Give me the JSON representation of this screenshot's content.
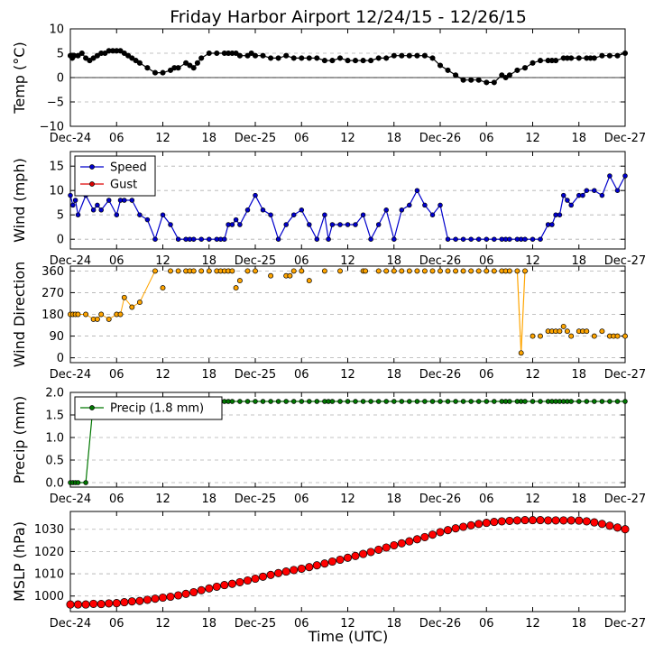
{
  "title": "Friday Harbor Airport 12/24/15 - 12/26/15",
  "xlabel": "Time (UTC)",
  "x_ticks": [
    "Dec-24",
    "06",
    "12",
    "18",
    "Dec-25",
    "06",
    "12",
    "18",
    "Dec-26",
    "06",
    "12",
    "18",
    "Dec-27"
  ],
  "chart_data": [
    {
      "type": "line",
      "ylabel": "Temp (°C)",
      "ylim": [
        -10,
        10
      ],
      "yticks": [
        "10",
        "5",
        "0",
        "−5",
        "−10"
      ],
      "ytick_values": [
        10,
        5,
        0,
        -5,
        -10
      ],
      "grid": true,
      "zero_line": true,
      "series": [
        {
          "color": "#000000",
          "x": [
            0.0,
            0.25,
            0.5,
            1.0,
            1.5,
            2.0,
            2.5,
            3.0,
            3.5,
            4.0,
            4.5,
            5.0,
            5.5,
            6.0,
            6.5,
            7.0,
            7.5,
            8.0,
            8.5,
            9.0,
            10.0,
            11.0,
            12.0,
            13.0,
            13.5,
            14.0,
            15.0,
            15.5,
            16.0,
            16.5,
            17.0,
            18.0,
            19.0,
            20.0,
            20.5,
            21.0,
            21.5,
            22.0,
            23.0,
            23.5,
            24.0,
            25.0,
            26.0,
            27.0,
            28.0,
            29.0,
            30.0,
            31.0,
            32.0,
            33.0,
            34.0,
            35.0,
            36.0,
            37.0,
            38.0,
            39.0,
            40.0,
            41.0,
            42.0,
            43.0,
            44.0,
            45.0,
            46.0,
            47.0,
            48.0,
            49.0,
            50.0,
            51.0,
            52.0,
            53.0,
            54.0,
            55.0,
            56.0,
            56.5,
            57.0,
            58.0,
            59.0,
            60.0,
            61.0,
            62.0,
            62.5,
            63.0,
            64.0,
            64.5,
            65.0,
            66.0,
            67.0,
            67.5,
            68.0,
            69.0,
            70.0,
            71.0,
            72.0
          ],
          "y": [
            4.5,
            4.0,
            4.5,
            4.5,
            5.0,
            4.0,
            3.5,
            4.0,
            4.5,
            5.0,
            5.0,
            5.5,
            5.5,
            5.5,
            5.5,
            5.0,
            4.5,
            4.0,
            3.5,
            3.0,
            2.0,
            1.0,
            1.0,
            1.5,
            2.0,
            2.0,
            3.0,
            2.5,
            2.0,
            3.0,
            4.0,
            5.0,
            5.0,
            5.0,
            5.0,
            5.0,
            5.0,
            4.5,
            4.5,
            5.0,
            4.5,
            4.5,
            4.0,
            4.0,
            4.5,
            4.0,
            4.0,
            4.0,
            4.0,
            3.5,
            3.5,
            4.0,
            3.5,
            3.5,
            3.5,
            3.5,
            4.0,
            4.0,
            4.5,
            4.5,
            4.5,
            4.5,
            4.5,
            4.0,
            2.5,
            1.5,
            0.5,
            -0.5,
            -0.5,
            -0.5,
            -1.0,
            -1.0,
            0.5,
            0.0,
            0.5,
            1.5,
            2.0,
            3.0,
            3.5,
            3.5,
            3.5,
            3.5,
            4.0,
            4.0,
            4.0,
            4.0,
            4.0,
            4.0,
            4.0,
            4.5,
            4.5,
            4.5,
            5.0
          ]
        }
      ]
    },
    {
      "type": "line",
      "ylabel": "Wind (mph)",
      "ylim": [
        -2,
        18
      ],
      "yticks": [
        "15",
        "10",
        "5",
        "0"
      ],
      "ytick_values": [
        15,
        10,
        5,
        0
      ],
      "grid": true,
      "legend_position": "top-left",
      "series": [
        {
          "name": "Speed",
          "color": "#0000cc",
          "x": [
            0.0,
            0.33,
            0.66,
            1.0,
            2.0,
            3.0,
            3.5,
            4.0,
            5.0,
            6.0,
            6.5,
            7.0,
            8.0,
            9.0,
            10.0,
            11.0,
            12.0,
            13.0,
            14.0,
            15.0,
            15.5,
            16.0,
            17.0,
            18.0,
            19.0,
            19.5,
            20.0,
            20.5,
            21.0,
            21.5,
            22.0,
            23.0,
            24.0,
            25.0,
            26.0,
            27.0,
            28.0,
            29.0,
            30.0,
            31.0,
            32.0,
            33.0,
            33.5,
            34.0,
            35.0,
            36.0,
            37.0,
            38.0,
            39.0,
            40.0,
            41.0,
            42.0,
            43.0,
            44.0,
            45.0,
            46.0,
            47.0,
            48.0,
            49.0,
            50.0,
            51.0,
            52.0,
            53.0,
            54.0,
            55.0,
            56.0,
            56.5,
            57.0,
            58.0,
            58.5,
            59.0,
            60.0,
            61.0,
            62.0,
            62.5,
            63.0,
            63.5,
            64.0,
            64.5,
            65.0,
            66.0,
            66.5,
            67.0,
            68.0,
            69.0,
            70.0,
            71.0,
            72.0
          ],
          "y": [
            9,
            7,
            8,
            5,
            9,
            6,
            7,
            6,
            8,
            5,
            8,
            8,
            8,
            5,
            4,
            0,
            5,
            3,
            0,
            0,
            0,
            0,
            0,
            0,
            0,
            0,
            0,
            3,
            3,
            4,
            3,
            6,
            9,
            6,
            5,
            0,
            3,
            5,
            6,
            3,
            0,
            5,
            0,
            3,
            3,
            3,
            3,
            5,
            0,
            3,
            6,
            0,
            6,
            7,
            10,
            7,
            5,
            7,
            0,
            0,
            0,
            0,
            0,
            0,
            0,
            0,
            0,
            0,
            0,
            0,
            0,
            0,
            0,
            3,
            3,
            5,
            5,
            9,
            8,
            7,
            9,
            9,
            10,
            10,
            9,
            13,
            10,
            13
          ]
        },
        {
          "name": "Gust",
          "color": "#dd0000",
          "x": [],
          "y": []
        }
      ]
    },
    {
      "type": "scatter",
      "ylabel": "Wind Direction",
      "ylim": [
        -20,
        380
      ],
      "yticks": [
        "360",
        "270",
        "180",
        "90",
        "0"
      ],
      "ytick_values": [
        360,
        270,
        180,
        90,
        0
      ],
      "grid": true,
      "series": [
        {
          "color": "#ffa500",
          "x": [
            0.0,
            0.33,
            0.66,
            1.0,
            2.0,
            3.0,
            3.5,
            4.0,
            5.0,
            6.0,
            6.5,
            7.0,
            8.0,
            9.0,
            11.0,
            12.0,
            13.0,
            14.0,
            15.0,
            15.5,
            16.0,
            17.0,
            18.0,
            19.0,
            19.5,
            20.0,
            20.5,
            21.0,
            21.5,
            22.0,
            23.0,
            24.0,
            26.0,
            28.0,
            28.5,
            29.0,
            30.0,
            31.0,
            33.0,
            35.0,
            38.0,
            38.3,
            40.0,
            41.0,
            42.0,
            43.0,
            44.0,
            45.0,
            46.0,
            47.0,
            48.0,
            49.0,
            50.0,
            51.0,
            52.0,
            53.0,
            54.0,
            55.0,
            56.0,
            56.5,
            57.0,
            58.0,
            58.5,
            59.0,
            60.0,
            61.0,
            62.0,
            62.5,
            63.0,
            63.5,
            64.0,
            64.5,
            65.0,
            66.0,
            66.5,
            67.0,
            68.0,
            69.0,
            70.0,
            70.5,
            71.0,
            72.0
          ],
          "y": [
            180,
            180,
            180,
            180,
            180,
            160,
            160,
            180,
            160,
            180,
            180,
            250,
            210,
            230,
            360,
            290,
            360,
            360,
            360,
            360,
            360,
            360,
            360,
            360,
            360,
            360,
            360,
            360,
            290,
            320,
            360,
            360,
            340,
            340,
            340,
            360,
            360,
            320,
            360,
            360,
            360,
            360,
            360,
            360,
            360,
            360,
            360,
            360,
            360,
            360,
            360,
            360,
            360,
            360,
            360,
            360,
            360,
            360,
            360,
            360,
            360,
            360,
            20,
            360,
            90,
            90,
            110,
            110,
            110,
            110,
            130,
            110,
            90,
            110,
            110,
            110,
            90,
            110,
            90,
            90,
            90,
            90
          ]
        }
      ]
    },
    {
      "type": "line",
      "ylabel": "Precip (mm)",
      "ylim": [
        -0.1,
        2.0
      ],
      "yticks": [
        "2.0",
        "1.5",
        "1.0",
        "0.5",
        "0.0"
      ],
      "ytick_values": [
        2.0,
        1.5,
        1.0,
        0.5,
        0.0
      ],
      "grid": true,
      "legend_position": "top-left",
      "series": [
        {
          "name": "Precip (1.8 mm)",
          "color": "#007700",
          "x": [
            0.0,
            0.33,
            0.66,
            1.0,
            2.0,
            3.0,
            4.0,
            5.0,
            6.0,
            7.0,
            8.0,
            9.0,
            10.0,
            11.0,
            12.0,
            13.0,
            14.0,
            15.0,
            15.5,
            16.0,
            17.0,
            18.0,
            19.0,
            19.5,
            20.0,
            20.5,
            21.0,
            22.0,
            23.0,
            24.0,
            25.0,
            26.0,
            27.0,
            28.0,
            29.0,
            30.0,
            31.0,
            32.0,
            33.0,
            33.5,
            34.0,
            35.0,
            36.0,
            37.0,
            38.0,
            39.0,
            40.0,
            41.0,
            42.0,
            43.0,
            44.0,
            45.0,
            46.0,
            47.0,
            48.0,
            49.0,
            50.0,
            51.0,
            52.0,
            53.0,
            54.0,
            55.0,
            56.0,
            56.5,
            57.0,
            58.0,
            58.5,
            59.0,
            60.0,
            61.0,
            62.0,
            62.5,
            63.0,
            63.5,
            64.0,
            64.5,
            65.0,
            66.0,
            67.0,
            68.0,
            69.0,
            70.0,
            71.0,
            72.0
          ],
          "y": [
            0.0,
            0.0,
            0.0,
            0.0,
            0.0,
            1.8,
            1.8,
            1.8,
            1.8,
            1.8,
            1.8,
            1.8,
            1.8,
            1.8,
            1.8,
            1.8,
            1.8,
            1.8,
            1.8,
            1.8,
            1.8,
            1.8,
            1.8,
            1.8,
            1.8,
            1.8,
            1.8,
            1.8,
            1.8,
            1.8,
            1.8,
            1.8,
            1.8,
            1.8,
            1.8,
            1.8,
            1.8,
            1.8,
            1.8,
            1.8,
            1.8,
            1.8,
            1.8,
            1.8,
            1.8,
            1.8,
            1.8,
            1.8,
            1.8,
            1.8,
            1.8,
            1.8,
            1.8,
            1.8,
            1.8,
            1.8,
            1.8,
            1.8,
            1.8,
            1.8,
            1.8,
            1.8,
            1.8,
            1.8,
            1.8,
            1.8,
            1.8,
            1.8,
            1.8,
            1.8,
            1.8,
            1.8,
            1.8,
            1.8,
            1.8,
            1.8,
            1.8,
            1.8,
            1.8,
            1.8,
            1.8,
            1.8,
            1.8,
            1.8
          ]
        }
      ]
    },
    {
      "type": "line",
      "ylabel": "MSLP (hPa)",
      "ylim": [
        993,
        1038
      ],
      "yticks": [
        "1030",
        "1020",
        "1010",
        "1000"
      ],
      "ytick_values": [
        1030,
        1020,
        1010,
        1000
      ],
      "grid": true,
      "series": [
        {
          "color": "#ff0000",
          "x": [
            0,
            1,
            2,
            3,
            4,
            5,
            6,
            7,
            8,
            9,
            10,
            11,
            12,
            13,
            14,
            15,
            16,
            17,
            18,
            19,
            20,
            21,
            22,
            23,
            24,
            25,
            26,
            27,
            28,
            29,
            30,
            31,
            32,
            33,
            34,
            35,
            36,
            37,
            38,
            39,
            40,
            41,
            42,
            43,
            44,
            45,
            46,
            47,
            48,
            49,
            50,
            51,
            52,
            53,
            54,
            55,
            56,
            57,
            58,
            59,
            60,
            61,
            62,
            63,
            64,
            65,
            66,
            67,
            68,
            69,
            70,
            71,
            72
          ],
          "y": [
            996.2,
            996.2,
            996.2,
            996.5,
            996.4,
            996.7,
            996.8,
            997.2,
            997.6,
            997.8,
            998.3,
            998.8,
            999.3,
            999.7,
            1000.3,
            1001.0,
            1001.7,
            1002.6,
            1003.4,
            1004.2,
            1004.9,
            1005.5,
            1006.2,
            1007.0,
            1007.8,
            1008.7,
            1009.5,
            1010.3,
            1011.0,
            1011.7,
            1012.3,
            1013.0,
            1013.8,
            1014.6,
            1015.5,
            1016.3,
            1017.2,
            1018.0,
            1018.9,
            1019.8,
            1020.8,
            1021.8,
            1022.8,
            1023.7,
            1024.6,
            1025.5,
            1026.5,
            1027.6,
            1028.7,
            1029.6,
            1030.4,
            1031.1,
            1031.8,
            1032.4,
            1032.9,
            1033.3,
            1033.6,
            1033.8,
            1034.0,
            1034.1,
            1034.1,
            1034.1,
            1034.0,
            1034.0,
            1034.0,
            1034.0,
            1033.9,
            1033.6,
            1033.1,
            1032.4,
            1031.6,
            1030.8,
            1030.0
          ]
        }
      ]
    }
  ]
}
